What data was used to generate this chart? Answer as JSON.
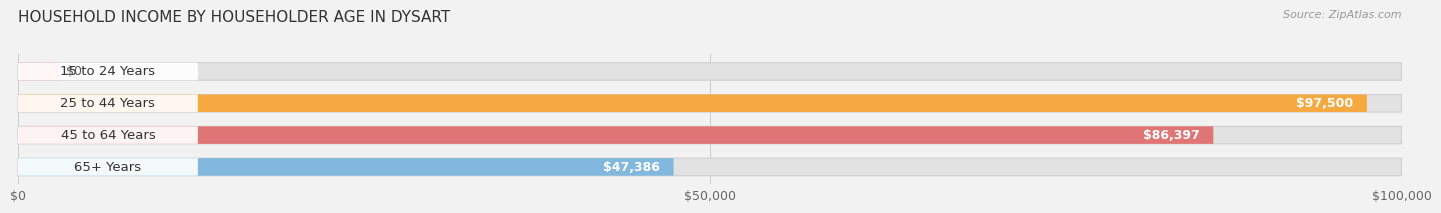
{
  "title": "HOUSEHOLD INCOME BY HOUSEHOLDER AGE IN DYSART",
  "source": "Source: ZipAtlas.com",
  "categories": [
    "15 to 24 Years",
    "25 to 44 Years",
    "45 to 64 Years",
    "65+ Years"
  ],
  "values": [
    0,
    97500,
    86397,
    47386
  ],
  "value_labels": [
    "$0",
    "$97,500",
    "$86,397",
    "$47,386"
  ],
  "bar_colors": [
    "#f2a0aa",
    "#f5a940",
    "#e07575",
    "#82b8de"
  ],
  "xlim": [
    0,
    100000
  ],
  "xtick_values": [
    0,
    50000,
    100000
  ],
  "xtick_labels": [
    "$0",
    "$50,000",
    "$100,000"
  ],
  "background_color": "#f2f2f2",
  "bar_bg_color": "#e2e2e2",
  "label_bg_color": "#ffffff",
  "title_fontsize": 11,
  "source_fontsize": 8,
  "label_fontsize": 9.5,
  "value_fontsize": 9,
  "tick_fontsize": 9,
  "bar_height": 0.55,
  "bar_gap": 0.45
}
